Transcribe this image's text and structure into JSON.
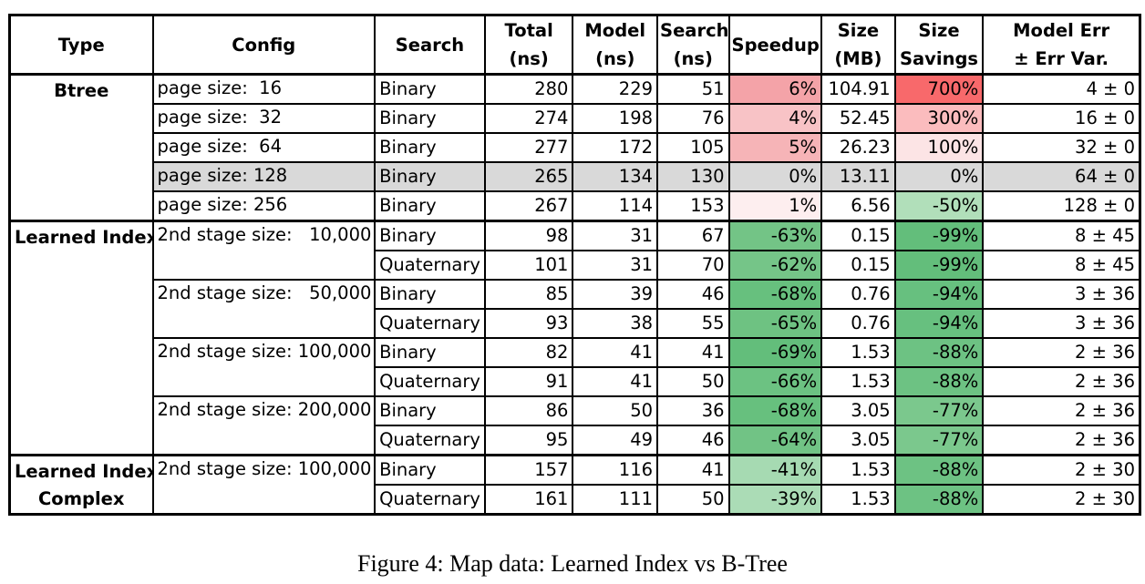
{
  "table": {
    "headers": [
      {
        "lines": [
          "Type"
        ]
      },
      {
        "lines": [
          "Config"
        ]
      },
      {
        "lines": [
          "Search"
        ]
      },
      {
        "lines": [
          "Total",
          "(ns)"
        ]
      },
      {
        "lines": [
          "Model",
          "(ns)"
        ]
      },
      {
        "lines": [
          "Search",
          "(ns)"
        ]
      },
      {
        "lines": [
          "Speedup"
        ]
      },
      {
        "lines": [
          "Size",
          "(MB)"
        ]
      },
      {
        "lines": [
          "Size",
          "Savings"
        ]
      },
      {
        "lines": [
          "Model Err",
          "± Err Var."
        ]
      }
    ],
    "groups": [
      {
        "type_lines": [
          "Btree"
        ],
        "configs": [
          {
            "label": "page size:  16",
            "rows": [
              {
                "search": "Binary",
                "total": "280",
                "model": "229",
                "search_ns": "51",
                "speedup": "6%",
                "speedup_color": "#f4a3a8",
                "size": "104.91",
                "savings": "700%",
                "savings_color": "#f8696b",
                "err": "4 ± 0"
              }
            ]
          },
          {
            "label": "page size:  32",
            "rows": [
              {
                "search": "Binary",
                "total": "274",
                "model": "198",
                "search_ns": "76",
                "speedup": "4%",
                "speedup_color": "#f8c3c6",
                "size": "52.45",
                "savings": "300%",
                "savings_color": "#fbbcbe",
                "err": "16 ± 0"
              }
            ]
          },
          {
            "label": "page size:  64",
            "rows": [
              {
                "search": "Binary",
                "total": "277",
                "model": "172",
                "search_ns": "105",
                "speedup": "5%",
                "speedup_color": "#f6b4b7",
                "size": "26.23",
                "savings": "100%",
                "savings_color": "#fce4e5",
                "err": "32 ± 0"
              }
            ]
          },
          {
            "label": "page size: 128",
            "baseline": true,
            "rows": [
              {
                "search": "Binary",
                "total": "265",
                "model": "134",
                "search_ns": "130",
                "speedup": "0%",
                "speedup_color": "",
                "size": "13.11",
                "savings": "0%",
                "savings_color": "",
                "err": "64 ± 0"
              }
            ]
          },
          {
            "label": "page size: 256",
            "rows": [
              {
                "search": "Binary",
                "total": "267",
                "model": "114",
                "search_ns": "153",
                "speedup": "1%",
                "speedup_color": "#fdeeef",
                "size": "6.56",
                "savings": "-50%",
                "savings_color": "#b1dfba",
                "err": "128 ± 0"
              }
            ]
          }
        ]
      },
      {
        "type_lines": [
          "Learned Index"
        ],
        "configs": [
          {
            "label": "2nd stage size:   10,000",
            "rows": [
              {
                "search": "Binary",
                "total": "98",
                "model": "31",
                "search_ns": "67",
                "speedup": "-63%",
                "speedup_color": "#73c486",
                "size": "0.15",
                "savings": "-99%",
                "savings_color": "#63be7b",
                "err": "8 ± 45"
              },
              {
                "search": "Quaternary",
                "total": "101",
                "model": "31",
                "search_ns": "70",
                "speedup": "-62%",
                "speedup_color": "#75c588",
                "size": "0.15",
                "savings": "-99%",
                "savings_color": "#63be7b",
                "err": "8 ± 45"
              }
            ]
          },
          {
            "label": "2nd stage size:   50,000",
            "rows": [
              {
                "search": "Binary",
                "total": "85",
                "model": "39",
                "search_ns": "46",
                "speedup": "-68%",
                "speedup_color": "#67c07e",
                "size": "0.76",
                "savings": "-94%",
                "savings_color": "#67c07f",
                "err": "3 ± 36"
              },
              {
                "search": "Quaternary",
                "total": "93",
                "model": "38",
                "search_ns": "55",
                "speedup": "-65%",
                "speedup_color": "#6ec282",
                "size": "0.76",
                "savings": "-94%",
                "savings_color": "#67c07f",
                "err": "3 ± 36"
              }
            ]
          },
          {
            "label": "2nd stage size: 100,000",
            "rows": [
              {
                "search": "Binary",
                "total": "82",
                "model": "41",
                "search_ns": "41",
                "speedup": "-69%",
                "speedup_color": "#63be7b",
                "size": "1.53",
                "savings": "-88%",
                "savings_color": "#6dc283",
                "err": "2 ± 36"
              },
              {
                "search": "Quaternary",
                "total": "91",
                "model": "41",
                "search_ns": "50",
                "speedup": "-66%",
                "speedup_color": "#6cc282",
                "size": "1.53",
                "savings": "-88%",
                "savings_color": "#6dc283",
                "err": "2 ± 36"
              }
            ]
          },
          {
            "label": "2nd stage size: 200,000",
            "rows": [
              {
                "search": "Binary",
                "total": "86",
                "model": "50",
                "search_ns": "36",
                "speedup": "-68%",
                "speedup_color": "#67c07e",
                "size": "3.05",
                "savings": "-77%",
                "savings_color": "#7bc88d",
                "err": "2 ± 36"
              },
              {
                "search": "Quaternary",
                "total": "95",
                "model": "49",
                "search_ns": "46",
                "speedup": "-64%",
                "speedup_color": "#71c385",
                "size": "3.05",
                "savings": "-77%",
                "savings_color": "#7bc88d",
                "err": "2 ± 36"
              }
            ]
          }
        ]
      },
      {
        "type_lines": [
          "Learned Index",
          "Complex"
        ],
        "configs": [
          {
            "label": "2nd stage size: 100,000",
            "rows": [
              {
                "search": "Binary",
                "total": "157",
                "model": "116",
                "search_ns": "41",
                "speedup": "-41%",
                "speedup_color": "#a6dab2",
                "size": "1.53",
                "savings": "-88%",
                "savings_color": "#6dc283",
                "err": "2 ± 30"
              },
              {
                "search": "Quaternary",
                "total": "161",
                "model": "111",
                "search_ns": "50",
                "speedup": "-39%",
                "speedup_color": "#abdcb6",
                "size": "1.53",
                "savings": "-88%",
                "savings_color": "#6dc283",
                "err": "2 ± 30"
              }
            ]
          }
        ]
      }
    ]
  },
  "caption": "Figure 4: Map data: Learned Index vs B-Tree"
}
